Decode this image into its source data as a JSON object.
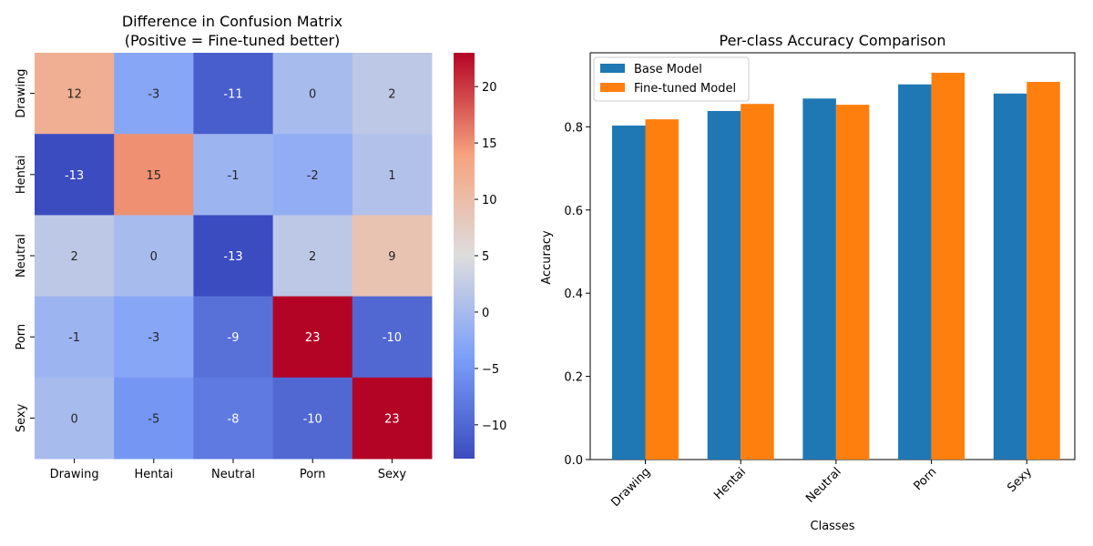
{
  "chart_data": [
    {
      "type": "heatmap",
      "title": "Difference in Confusion Matrix",
      "subtitle": "(Positive = Fine-tuned better)",
      "row_labels": [
        "Drawing",
        "Hentai",
        "Neutral",
        "Porn",
        "Sexy"
      ],
      "col_labels": [
        "Drawing",
        "Hentai",
        "Neutral",
        "Porn",
        "Sexy"
      ],
      "values": [
        [
          12,
          -3,
          -11,
          0,
          2
        ],
        [
          -13,
          15,
          -1,
          -2,
          1
        ],
        [
          2,
          0,
          -13,
          2,
          9
        ],
        [
          -1,
          -3,
          -9,
          23,
          -10
        ],
        [
          0,
          -5,
          -8,
          -10,
          23
        ]
      ],
      "colormap": "coolwarm",
      "vmin": -13,
      "vmax": 23,
      "colorbar_ticks": [
        -10,
        -5,
        0,
        5,
        10,
        15,
        20
      ],
      "colorbar_tick_labels": [
        "−10",
        "−5",
        "0",
        "5",
        "10",
        "15",
        "20"
      ]
    },
    {
      "type": "bar",
      "title": "Per-class Accuracy Comparison",
      "xlabel": "Classes",
      "ylabel": "Accuracy",
      "categories": [
        "Drawing",
        "Hentai",
        "Neutral",
        "Porn",
        "Sexy"
      ],
      "series": [
        {
          "name": "Base Model",
          "color": "#1f77b4",
          "values": [
            0.803,
            0.838,
            0.868,
            0.902,
            0.88
          ]
        },
        {
          "name": "Fine-tuned Model",
          "color": "#ff7f0e",
          "values": [
            0.818,
            0.855,
            0.853,
            0.93,
            0.908
          ]
        }
      ],
      "ylim": [
        0,
        0.978
      ],
      "yticks": [
        0.0,
        0.2,
        0.4,
        0.6,
        0.8
      ],
      "ytick_labels": [
        "0.0",
        "0.2",
        "0.4",
        "0.6",
        "0.8"
      ],
      "legend_position": "top-left"
    }
  ]
}
